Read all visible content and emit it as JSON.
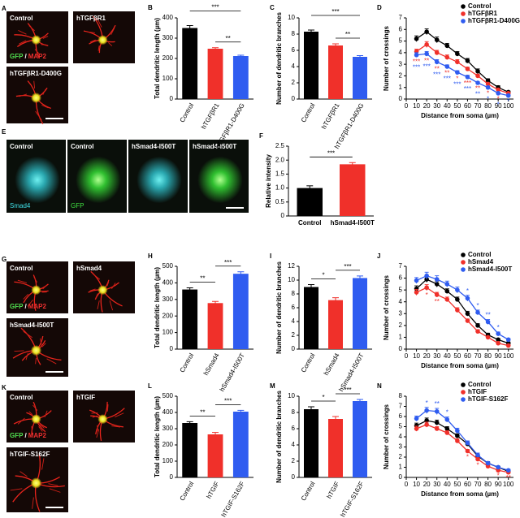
{
  "image_panels": [
    {
      "panel": "A",
      "stain": [
        "GFP",
        "/",
        "MAP2"
      ],
      "images": [
        {
          "label": "Control"
        },
        {
          "label": "hTGFβR1"
        },
        {
          "label": "hTGFβR1-D400G"
        }
      ]
    },
    {
      "panel": "E",
      "images": [
        {
          "label": "Control",
          "channel": "Smad4"
        },
        {
          "label": "Control",
          "channel": "GFP"
        },
        {
          "label": "hSmad4-I500T"
        },
        {
          "label": "hSmad4-I500T"
        }
      ]
    },
    {
      "panel": "G",
      "stain": [
        "GFP",
        "/",
        "MAP2"
      ],
      "images": [
        {
          "label": "Control"
        },
        {
          "label": "hSmad4"
        },
        {
          "label": "hSmad4-I500T"
        }
      ]
    },
    {
      "panel": "K",
      "stain": [
        "GFP",
        "/",
        "MAP2"
      ],
      "images": [
        {
          "label": "Control"
        },
        {
          "label": "hTGIF"
        },
        {
          "label": "hTGIF-S162F"
        }
      ]
    }
  ],
  "chart_data": [
    {
      "panel": "B",
      "type": "bar",
      "ylabel": "Total dendritic length (µm)",
      "categories": [
        "Control",
        "hTGFβR1",
        "hTGFβR1-D400G"
      ],
      "values": [
        350,
        248,
        212
      ],
      "errors": [
        12,
        5,
        4
      ],
      "colors": [
        "#000000",
        "#f0302a",
        "#2f5cf0"
      ],
      "ylim": [
        0,
        400
      ],
      "yticks": [
        0,
        100,
        200,
        300,
        400
      ],
      "significance": [
        {
          "between": [
            "Control",
            "hTGFβR1-D400G"
          ],
          "label": "***"
        },
        {
          "between": [
            "hTGFβR1",
            "hTGFβR1-D400G"
          ],
          "label": "**"
        }
      ]
    },
    {
      "panel": "C",
      "type": "bar",
      "ylabel": "Number of  dendritic branches",
      "categories": [
        "Control",
        "hTGFβR1",
        "hTGFβR1-D400G"
      ],
      "values": [
        8.3,
        6.6,
        5.2
      ],
      "errors": [
        0.2,
        0.2,
        0.15
      ],
      "colors": [
        "#000000",
        "#f0302a",
        "#2f5cf0"
      ],
      "ylim": [
        0,
        10
      ],
      "yticks": [
        0,
        2,
        4,
        6,
        8,
        10
      ],
      "significance": [
        {
          "between": [
            "Control",
            "hTGFβR1-D400G"
          ],
          "label": "***"
        },
        {
          "between": [
            "hTGFβR1",
            "hTGFβR1-D400G"
          ],
          "label": "**"
        }
      ]
    },
    {
      "panel": "D",
      "type": "line",
      "xlabel": "Distance from soma (µm)",
      "ylabel": "Number of crossings",
      "x": [
        10,
        20,
        30,
        40,
        50,
        60,
        70,
        80,
        90,
        100
      ],
      "xlim": [
        0,
        105
      ],
      "xticks": [
        0,
        10,
        20,
        30,
        40,
        50,
        60,
        70,
        80,
        90,
        100
      ],
      "ylim": [
        0,
        7
      ],
      "yticks": [
        0,
        1,
        2,
        3,
        4,
        5,
        6,
        7
      ],
      "legend": "upper right",
      "series": [
        {
          "name": "Control",
          "color": "#000000",
          "values": [
            5.2,
            5.8,
            5.1,
            4.6,
            3.9,
            3.3,
            2.4,
            1.6,
            1.0,
            0.6
          ],
          "errors": [
            0.25,
            0.25,
            0.25,
            0.2,
            0.2,
            0.2,
            0.2,
            0.15,
            0.15,
            0.1
          ]
        },
        {
          "name": "hTGFβR1",
          "color": "#f0302a",
          "values": [
            4.1,
            4.7,
            4.0,
            3.6,
            3.2,
            2.6,
            2.0,
            1.3,
            0.8,
            0.5
          ],
          "errors": [
            0.2,
            0.25,
            0.2,
            0.2,
            0.2,
            0.15,
            0.15,
            0.1,
            0.1,
            0.1
          ]
        },
        {
          "name": "hTGFβR1-D400G",
          "color": "#2f5cf0",
          "values": [
            3.8,
            3.9,
            3.2,
            2.8,
            2.3,
            1.9,
            1.4,
            1.0,
            0.5,
            0.3
          ],
          "errors": [
            0.2,
            0.2,
            0.2,
            0.15,
            0.15,
            0.15,
            0.1,
            0.1,
            0.1,
            0.1
          ]
        }
      ],
      "annotations": [
        {
          "x": 10,
          "series": "hTGFβR1",
          "label": "***"
        },
        {
          "x": 10,
          "series": "hTGFβR1-D400G",
          "label": "***"
        },
        {
          "x": 20,
          "series": "hTGFβR1",
          "label": "**"
        },
        {
          "x": 20,
          "series": "hTGFβR1-D400G",
          "label": "***"
        },
        {
          "x": 30,
          "series": "hTGFβR1",
          "label": "**"
        },
        {
          "x": 30,
          "series": "hTGFβR1-D400G",
          "label": "***"
        },
        {
          "x": 40,
          "series": "hTGFβR1",
          "label": "**"
        },
        {
          "x": 40,
          "series": "hTGFβR1-D400G",
          "label": "***"
        },
        {
          "x": 50,
          "series": "hTGFβR1",
          "label": "*"
        },
        {
          "x": 50,
          "series": "hTGFβR1-D400G",
          "label": "***"
        },
        {
          "x": 60,
          "series": "hTGFβR1",
          "label": "***"
        },
        {
          "x": 60,
          "series": "hTGFβR1-D400G",
          "label": "***"
        },
        {
          "x": 70,
          "series": "hTGFβR1",
          "label": "**"
        },
        {
          "x": 70,
          "series": "hTGFβR1-D400G",
          "label": "**"
        },
        {
          "x": 80,
          "series": "hTGFβR1",
          "label": "*"
        },
        {
          "x": 80,
          "series": "hTGFβR1-D400G",
          "label": "*"
        },
        {
          "x": 90,
          "series": "hTGFβR1",
          "label": "*"
        },
        {
          "x": 90,
          "series": "hTGFβR1-D400G",
          "label": "*"
        },
        {
          "x": 100,
          "series": "hTGFβR1-D400G",
          "label": "*"
        }
      ]
    },
    {
      "panel": "F",
      "type": "bar",
      "ylabel": "Relative intensity",
      "categories": [
        "Control",
        "hSmad4-I500T"
      ],
      "values": [
        1.0,
        1.85
      ],
      "errors": [
        0.08,
        0.06
      ],
      "colors": [
        "#000000",
        "#f0302a"
      ],
      "ylim": [
        0,
        2.5
      ],
      "yticks": [
        0,
        0.5,
        {
          "value": 1,
          "label": "1.0"
        },
        1.5,
        {
          "value": 2,
          "label": "2.0"
        },
        2.5
      ],
      "significance": [
        {
          "between": [
            "Control",
            "hSmad4-I500T"
          ],
          "label": "***"
        }
      ]
    },
    {
      "panel": "H",
      "type": "bar",
      "ylabel": "Total dendritic length (µm)",
      "categories": [
        "Control",
        "hSmad4",
        "hSmad4-I500T"
      ],
      "values": [
        360,
        278,
        455
      ],
      "errors": [
        10,
        10,
        12
      ],
      "colors": [
        "#000000",
        "#f0302a",
        "#2f5cf0"
      ],
      "ylim": [
        0,
        500
      ],
      "yticks": [
        0,
        100,
        200,
        300,
        400,
        500
      ],
      "significance": [
        {
          "between": [
            "Control",
            "hSmad4"
          ],
          "label": "**"
        },
        {
          "between": [
            "hSmad4",
            "hSmad4-I500T"
          ],
          "label": "***"
        }
      ]
    },
    {
      "panel": "I",
      "type": "bar",
      "ylabel": "Number of  dendritic branches",
      "categories": [
        "Control",
        "hSmad4",
        "hSmad4-I500T"
      ],
      "values": [
        9.0,
        7.1,
        10.3
      ],
      "errors": [
        0.35,
        0.35,
        0.3
      ],
      "colors": [
        "#000000",
        "#f0302a",
        "#2f5cf0"
      ],
      "ylim": [
        0,
        12
      ],
      "yticks": [
        0,
        2,
        4,
        6,
        8,
        10,
        12
      ],
      "significance": [
        {
          "between": [
            "Control",
            "hSmad4"
          ],
          "label": "*"
        },
        {
          "between": [
            "hSmad4",
            "hSmad4-I500T"
          ],
          "label": "***"
        }
      ]
    },
    {
      "panel": "J",
      "type": "line",
      "xlabel": "Distance from soma (µm)",
      "ylabel": "Number of crossings",
      "x": [
        10,
        20,
        30,
        40,
        50,
        60,
        70,
        80,
        90,
        100
      ],
      "xlim": [
        0,
        105
      ],
      "xticks": [
        0,
        10,
        20,
        30,
        40,
        50,
        60,
        70,
        80,
        90,
        100
      ],
      "ylim": [
        0,
        7
      ],
      "yticks": [
        0,
        1,
        2,
        3,
        4,
        5,
        6,
        7
      ],
      "legend": "upper right",
      "series": [
        {
          "name": "Control",
          "color": "#000000",
          "values": [
            5.1,
            5.9,
            5.5,
            4.9,
            4.2,
            3.0,
            2.0,
            1.2,
            0.8,
            0.5
          ],
          "errors": [
            0.25,
            0.25,
            0.25,
            0.2,
            0.2,
            0.2,
            0.15,
            0.15,
            0.1,
            0.1
          ]
        },
        {
          "name": "hSmad4",
          "color": "#f0302a",
          "values": [
            4.8,
            5.2,
            4.6,
            4.2,
            3.3,
            2.4,
            1.5,
            1.0,
            0.5,
            0.3
          ],
          "errors": [
            0.25,
            0.25,
            0.2,
            0.2,
            0.2,
            0.15,
            0.15,
            0.1,
            0.1,
            0.1
          ]
        },
        {
          "name": "hSmad4-I500T",
          "color": "#2f5cf0",
          "values": [
            5.8,
            6.2,
            5.9,
            5.5,
            5.0,
            4.3,
            3.1,
            2.3,
            1.3,
            0.8
          ],
          "errors": [
            0.25,
            0.3,
            0.3,
            0.25,
            0.25,
            0.25,
            0.2,
            0.2,
            0.15,
            0.1
          ]
        }
      ],
      "annotations": [
        {
          "x": 20,
          "series": "hSmad4",
          "label": "*"
        },
        {
          "x": 30,
          "series": "hSmad4",
          "label": "**"
        },
        {
          "x": 60,
          "series": "hSmad4-I500T",
          "label": "*"
        },
        {
          "x": 70,
          "series": "hSmad4-I500T",
          "label": "*"
        },
        {
          "x": 80,
          "series": "hSmad4-I500T",
          "label": "**"
        },
        {
          "x": 90,
          "series": "hSmad4-I500T",
          "label": "*"
        }
      ]
    },
    {
      "panel": "L",
      "type": "bar",
      "ylabel": "Total dendritic length (µm)",
      "categories": [
        "Control",
        "hTGIF",
        "hTGIF-S162F"
      ],
      "values": [
        335,
        265,
        405
      ],
      "errors": [
        8,
        12,
        8
      ],
      "colors": [
        "#000000",
        "#f0302a",
        "#2f5cf0"
      ],
      "ylim": [
        0,
        500
      ],
      "yticks": [
        0,
        100,
        200,
        300,
        400,
        500
      ],
      "significance": [
        {
          "between": [
            "Control",
            "hTGIF"
          ],
          "label": "**"
        },
        {
          "between": [
            "hTGIF",
            "hTGIF-S162F"
          ],
          "label": "***"
        }
      ]
    },
    {
      "panel": "M",
      "type": "bar",
      "ylabel": "Number of  dendritic branches",
      "categories": [
        "Control",
        "hTGIF",
        "hTGIF-S162F"
      ],
      "values": [
        8.4,
        7.2,
        9.4
      ],
      "errors": [
        0.3,
        0.3,
        0.2
      ],
      "colors": [
        "#000000",
        "#f0302a",
        "#2f5cf0"
      ],
      "ylim": [
        0,
        10
      ],
      "yticks": [
        0,
        2,
        4,
        6,
        8,
        10
      ],
      "significance": [
        {
          "between": [
            "Control",
            "hTGIF"
          ],
          "label": "*"
        },
        {
          "between": [
            "hTGIF",
            "hTGIF-S162F"
          ],
          "label": "***"
        }
      ]
    },
    {
      "panel": "N",
      "type": "line",
      "xlabel": "Distance from soma (µm)",
      "ylabel": "Number of crossings",
      "x": [
        10,
        20,
        30,
        40,
        50,
        60,
        70,
        80,
        90,
        100
      ],
      "xlim": [
        0,
        105
      ],
      "xticks": [
        0,
        10,
        20,
        30,
        40,
        50,
        60,
        70,
        80,
        90,
        100
      ],
      "ylim": [
        0,
        8
      ],
      "yticks": [
        0,
        1,
        2,
        3,
        4,
        5,
        6,
        7,
        8
      ],
      "legend": "upper right",
      "series": [
        {
          "name": "Control",
          "color": "#000000",
          "values": [
            5.1,
            5.6,
            5.4,
            4.8,
            4.1,
            3.3,
            2.1,
            1.4,
            1.0,
            0.6
          ],
          "errors": [
            0.25,
            0.25,
            0.25,
            0.2,
            0.2,
            0.2,
            0.15,
            0.15,
            0.1,
            0.1
          ]
        },
        {
          "name": "hTGIF",
          "color": "#f0302a",
          "values": [
            4.8,
            5.2,
            4.8,
            4.4,
            3.6,
            2.6,
            1.8,
            1.1,
            0.7,
            0.5
          ],
          "errors": [
            0.25,
            0.25,
            0.2,
            0.2,
            0.2,
            0.15,
            0.15,
            0.1,
            0.1,
            0.1
          ]
        },
        {
          "name": "hTGIF-S162F",
          "color": "#2f5cf0",
          "values": [
            5.8,
            6.6,
            6.5,
            5.7,
            4.6,
            3.4,
            2.2,
            1.4,
            1.0,
            0.7
          ],
          "errors": [
            0.25,
            0.3,
            0.3,
            0.25,
            0.25,
            0.2,
            0.2,
            0.15,
            0.1,
            0.1
          ]
        }
      ],
      "annotations": [
        {
          "x": 20,
          "series": "hTGIF-S162F",
          "label": "*"
        },
        {
          "x": 30,
          "series": "hTGIF-S162F",
          "label": "**"
        },
        {
          "x": 40,
          "series": "hTGIF-S162F",
          "label": "*"
        },
        {
          "x": 60,
          "series": "hTGIF",
          "label": "*"
        },
        {
          "x": 70,
          "series": "hTGIF",
          "label": "*"
        },
        {
          "x": 90,
          "series": "hTGIF",
          "label": "*"
        },
        {
          "x": 100,
          "series": "hTGIF",
          "label": "**"
        }
      ]
    }
  ]
}
